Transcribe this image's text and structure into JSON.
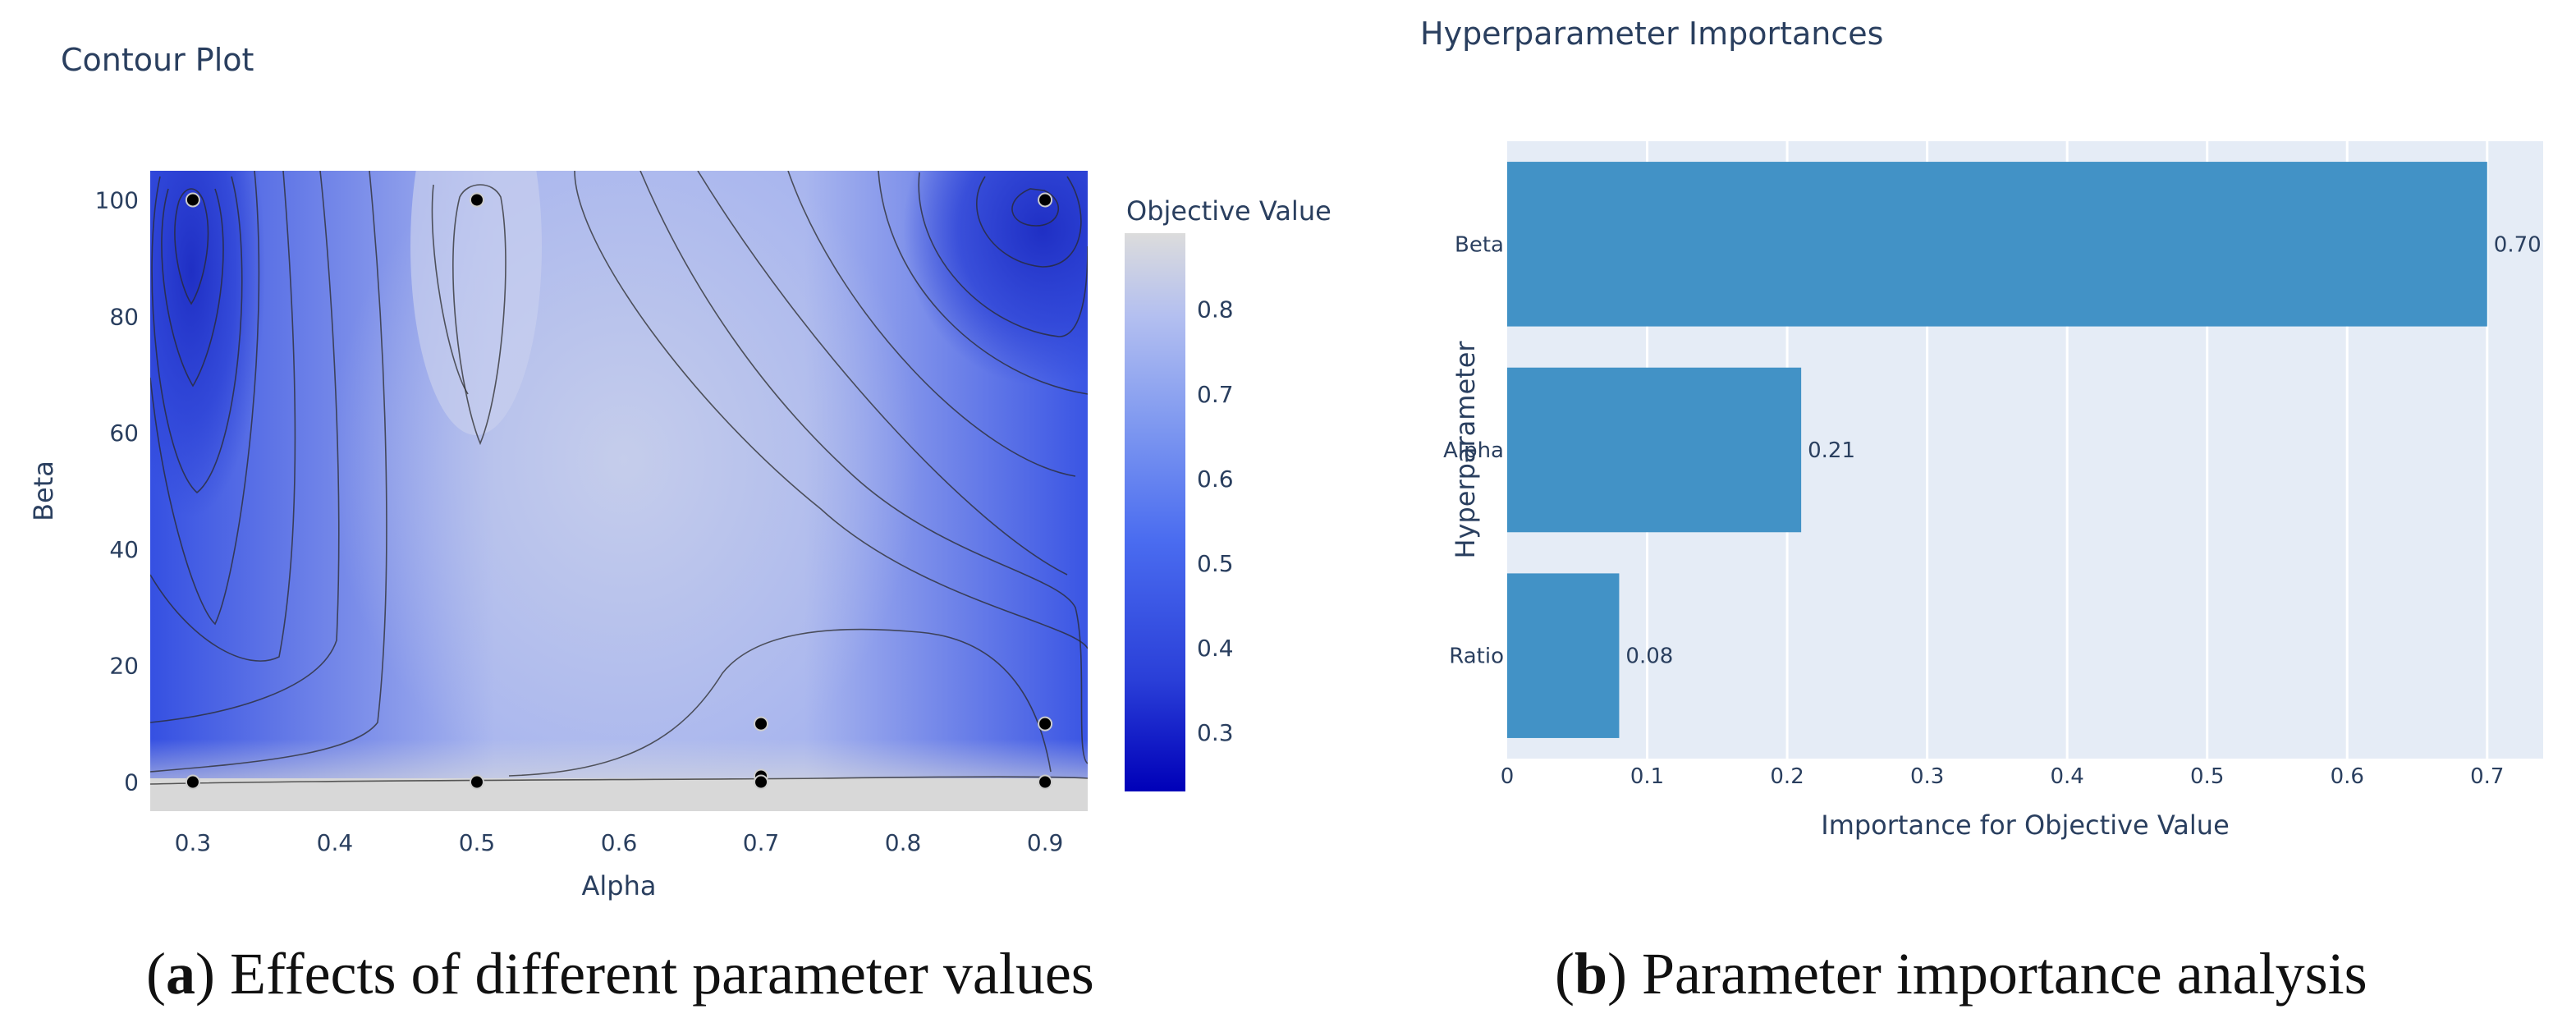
{
  "chart_data": [
    {
      "type": "contour",
      "title": "Contour Plot",
      "xlabel": "Alpha",
      "ylabel": "Beta",
      "xlim": [
        0.27,
        0.93
      ],
      "ylim": [
        -5,
        105
      ],
      "xticks": [
        0.3,
        0.4,
        0.5,
        0.6,
        0.7,
        0.8,
        0.9
      ],
      "yticks": [
        0,
        20,
        40,
        60,
        80,
        100
      ],
      "colorbar": {
        "title": "Objective Value",
        "range": [
          0.23,
          0.89
        ],
        "ticks": [
          0.3,
          0.4,
          0.5,
          0.6,
          0.7,
          0.8
        ],
        "colors": [
          "#0000b8",
          "#2a3fd8",
          "#4a6cf0",
          "#7d97f0",
          "#b3bff0",
          "#dcdcdc"
        ]
      },
      "trial_points": [
        {
          "x": 0.3,
          "y": 100
        },
        {
          "x": 0.5,
          "y": 100
        },
        {
          "x": 0.9,
          "y": 100
        },
        {
          "x": 0.7,
          "y": 10
        },
        {
          "x": 0.9,
          "y": 10
        },
        {
          "x": 0.7,
          "y": 1
        },
        {
          "x": 0.7,
          "y": 0
        },
        {
          "x": 0.3,
          "y": 0
        },
        {
          "x": 0.5,
          "y": 0
        },
        {
          "x": 0.9,
          "y": 0
        }
      ]
    },
    {
      "type": "bar",
      "orientation": "horizontal",
      "title": "Hyperparameter Importances",
      "xlabel": "Importance for Objective Value",
      "ylabel": "Hyperparameter",
      "categories": [
        "Beta",
        "Alpha",
        "Ratio"
      ],
      "values": [
        0.7,
        0.21,
        0.08
      ],
      "value_labels": [
        "0.70",
        "0.21",
        "0.08"
      ],
      "xlim": [
        0,
        0.74
      ],
      "xticks": [
        0,
        0.1,
        0.2,
        0.3,
        0.4,
        0.5,
        0.6,
        0.7
      ],
      "xtick_labels": [
        "0",
        "0.1",
        "0.2",
        "0.3",
        "0.4",
        "0.5",
        "0.6",
        "0.7"
      ],
      "bar_color": "#4292c6"
    }
  ],
  "captions": {
    "a": {
      "label": "a",
      "text": " Effects of different parameter values"
    },
    "b": {
      "label": "b",
      "text": " Parameter importance analysis"
    }
  }
}
